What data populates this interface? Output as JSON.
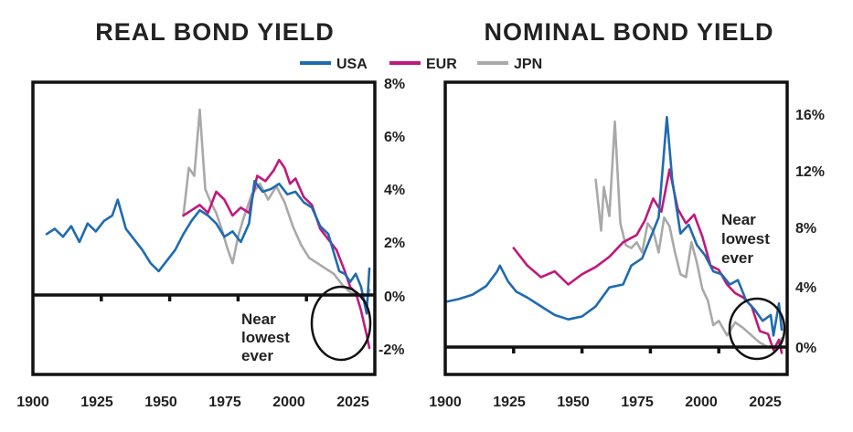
{
  "chart_data": [
    {
      "type": "line",
      "title": "REAL BOND YIELD",
      "xlim": [
        1900,
        2025
      ],
      "ylim": [
        -3,
        8
      ],
      "xticks": [
        "1900",
        "1925",
        "1950",
        "1975",
        "2000",
        "2025"
      ],
      "yticks": [
        "8%",
        "6%",
        "4%",
        "2%",
        "0%",
        "-2%"
      ],
      "ytick_values": [
        8,
        6,
        4,
        2,
        0,
        -2
      ],
      "y_axis_side": "right",
      "annotation": [
        "Near",
        "lowest",
        "ever"
      ],
      "annotation_circle_center": [
        2020,
        -1.0
      ],
      "series": [
        {
          "name": "USA",
          "color": "#1f6bb0",
          "x": [
            1905,
            1908,
            1911,
            1914,
            1917,
            1920,
            1923,
            1926,
            1929,
            1931,
            1934,
            1937,
            1940,
            1943,
            1946,
            1949,
            1952,
            1955,
            1958,
            1961,
            1964,
            1967,
            1970,
            1973,
            1976,
            1979,
            1981,
            1984,
            1987,
            1990,
            1993,
            1996,
            1999,
            2002,
            2005,
            2008,
            2010,
            2012,
            2014,
            2016,
            2018,
            2020,
            2022,
            2023
          ],
          "y": [
            2.3,
            2.5,
            2.2,
            2.6,
            2.0,
            2.7,
            2.4,
            2.8,
            3.0,
            3.6,
            2.5,
            2.1,
            1.7,
            1.2,
            0.9,
            1.3,
            1.7,
            2.3,
            2.8,
            3.2,
            3.0,
            2.7,
            2.2,
            2.4,
            2.0,
            2.7,
            4.3,
            3.9,
            4.0,
            4.2,
            3.8,
            3.9,
            3.5,
            3.3,
            2.6,
            2.3,
            1.6,
            0.9,
            0.8,
            0.5,
            0.8,
            0.3,
            -0.7,
            1.0
          ]
        },
        {
          "name": "EUR",
          "color": "#c0197a",
          "x": [
            1955,
            1958,
            1961,
            1964,
            1967,
            1970,
            1973,
            1976,
            1979,
            1982,
            1985,
            1988,
            1990,
            1992,
            1994,
            1996,
            1999,
            2002,
            2005,
            2008,
            2011,
            2014,
            2016,
            2018,
            2020,
            2022,
            2023
          ],
          "y": [
            3.0,
            3.2,
            3.4,
            3.1,
            3.9,
            3.6,
            3.0,
            3.3,
            3.1,
            4.5,
            4.3,
            4.7,
            5.1,
            4.8,
            4.2,
            4.4,
            3.7,
            3.4,
            2.5,
            2.1,
            1.7,
            0.9,
            0.3,
            0.1,
            -0.6,
            -1.5,
            -2.0
          ]
        },
        {
          "name": "JPN",
          "color": "#a9a9a9",
          "x": [
            1955,
            1957,
            1959,
            1961,
            1963,
            1965,
            1967,
            1969,
            1971,
            1973,
            1975,
            1977,
            1980,
            1983,
            1986,
            1989,
            1992,
            1995,
            1998,
            2001,
            2004,
            2007,
            2010,
            2013,
            2016,
            2019,
            2022,
            2023
          ],
          "y": [
            3.0,
            4.8,
            4.5,
            7.0,
            4.0,
            3.5,
            3.1,
            2.5,
            1.8,
            1.2,
            2.2,
            2.9,
            3.8,
            4.2,
            3.6,
            4.1,
            3.5,
            2.6,
            1.9,
            1.4,
            1.2,
            1.0,
            0.8,
            0.4,
            0.1,
            0.0,
            -0.3,
            0.2
          ]
        }
      ]
    },
    {
      "type": "line",
      "title": "NOMINAL BOND YIELD",
      "xlim": [
        1900,
        2025
      ],
      "ylim": [
        -1,
        18
      ],
      "xticks": [
        "1900",
        "1925",
        "1950",
        "1975",
        "2000",
        "2025"
      ],
      "yticks": [
        "16%",
        "12%",
        "8%",
        "4%",
        "0%"
      ],
      "ytick_values": [
        16,
        12,
        8,
        4,
        0
      ],
      "y_axis_side": "right",
      "annotation": [
        "Near",
        "lowest",
        "ever"
      ],
      "annotation_circle_center": [
        2020,
        1.2
      ],
      "series": [
        {
          "name": "USA",
          "color": "#1f6bb0",
          "x": [
            1900,
            1905,
            1910,
            1915,
            1919,
            1920,
            1923,
            1926,
            1930,
            1935,
            1940,
            1945,
            1950,
            1955,
            1960,
            1965,
            1968,
            1972,
            1975,
            1978,
            1981,
            1983,
            1986,
            1989,
            1992,
            1995,
            1998,
            2001,
            2004,
            2007,
            2010,
            2013,
            2016,
            2019,
            2020,
            2022,
            2023
          ],
          "y": [
            3.1,
            3.3,
            3.6,
            4.2,
            5.2,
            5.6,
            4.5,
            3.8,
            3.4,
            2.8,
            2.2,
            1.9,
            2.1,
            2.8,
            4.1,
            4.3,
            5.6,
            6.1,
            7.5,
            8.9,
            15.8,
            11.5,
            7.8,
            8.4,
            7.0,
            6.3,
            5.2,
            5.0,
            4.3,
            4.6,
            3.2,
            2.6,
            1.8,
            2.2,
            0.8,
            3.0,
            1.2
          ]
        },
        {
          "name": "EUR",
          "color": "#c0197a",
          "x": [
            1925,
            1930,
            1935,
            1940,
            1945,
            1950,
            1955,
            1960,
            1965,
            1970,
            1973,
            1976,
            1979,
            1982,
            1985,
            1988,
            1991,
            1994,
            1997,
            2000,
            2003,
            2006,
            2009,
            2012,
            2015,
            2018,
            2020,
            2022,
            2023
          ],
          "y": [
            6.8,
            5.6,
            4.8,
            5.2,
            4.3,
            5.0,
            5.5,
            6.2,
            7.2,
            7.7,
            8.7,
            10.2,
            9.3,
            12.2,
            9.5,
            8.5,
            9.1,
            7.6,
            5.6,
            5.3,
            4.3,
            3.7,
            3.4,
            2.8,
            1.1,
            0.9,
            -0.2,
            0.5,
            -0.4
          ]
        },
        {
          "name": "JPN",
          "color": "#a9a9a9",
          "x": [
            1955,
            1957,
            1958,
            1960,
            1962,
            1964,
            1966,
            1968,
            1970,
            1972,
            1974,
            1976,
            1978,
            1980,
            1982,
            1984,
            1986,
            1988,
            1990,
            1992,
            1994,
            1996,
            1998,
            2000,
            2003,
            2006,
            2009,
            2012,
            2015,
            2018,
            2020,
            2022,
            2023
          ],
          "y": [
            11.5,
            8.0,
            11.0,
            9.0,
            15.5,
            8.5,
            7.0,
            6.8,
            7.2,
            6.5,
            8.5,
            8.0,
            6.5,
            8.9,
            8.3,
            6.5,
            5.0,
            4.8,
            7.2,
            5.8,
            4.0,
            3.2,
            1.5,
            1.8,
            0.8,
            1.7,
            1.3,
            0.8,
            0.3,
            0.0,
            0.0,
            0.2,
            0.6
          ]
        }
      ]
    }
  ],
  "legend": [
    {
      "label": "USA",
      "color": "#1f6bb0"
    },
    {
      "label": "EUR",
      "color": "#c0197a"
    },
    {
      "label": "JPN",
      "color": "#a9a9a9"
    }
  ]
}
